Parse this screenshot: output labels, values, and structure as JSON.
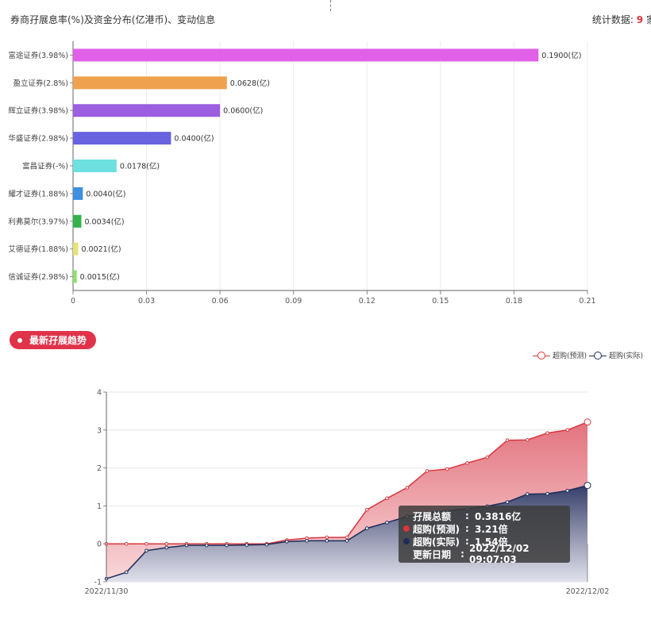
{
  "header": {
    "title": "券商孖展息率(%)及资金分布(亿港币)、变动信息",
    "stats_label": "统计数据:",
    "stats_count": "9",
    "stats_unit": "家"
  },
  "colors": {
    "series_forecast": "#d9363e",
    "series_actual": "#1c2b5a",
    "pill_bg": "#e0334a"
  },
  "chart_data": [
    {
      "type": "bar",
      "orientation": "horizontal",
      "categories": [
        "富途证券(3.98%)",
        "盈立证券(2.8%)",
        "辉立证券(3.98%)",
        "华盛证券(2.98%)",
        "富昌证券(-%)",
        "耀才证券(1.88%)",
        "利弗莫尔(3.97%)",
        "艾德证券(1.88%)",
        "信诚证券(2.98%)"
      ],
      "values": [
        0.19,
        0.0628,
        0.06,
        0.04,
        0.0178,
        0.004,
        0.0034,
        0.0021,
        0.0015
      ],
      "value_labels": [
        "0.1900(亿)",
        "0.0628(亿)",
        "0.0600(亿)",
        "0.0400(亿)",
        "0.0178(亿)",
        "0.0040(亿)",
        "0.0034(亿)",
        "0.0021(亿)",
        "0.0015(亿)"
      ],
      "bar_colors": [
        "#e060e8",
        "#efa24e",
        "#9b5fe0",
        "#6a63e0",
        "#6ee0e0",
        "#3e8fe0",
        "#33b34a",
        "#e6e27a",
        "#8ee06a"
      ],
      "xlim": [
        0,
        0.21
      ],
      "xticks": [
        "0",
        "0.03",
        "0.06",
        "0.09",
        "0.12",
        "0.15",
        "0.18",
        "0.21"
      ],
      "grid": true
    },
    {
      "type": "area",
      "title": "最新孖展趋势",
      "series": [
        {
          "name": "超购(预测)",
          "values": [
            0,
            0,
            0,
            0,
            0,
            0,
            0,
            0,
            0,
            0.1,
            0.15,
            0.17,
            0.17,
            0.9,
            1.2,
            1.48,
            1.92,
            1.97,
            2.13,
            2.28,
            2.73,
            2.74,
            2.92,
            3.0,
            3.21
          ]
        },
        {
          "name": "超购(实际)",
          "values": [
            -0.92,
            -0.75,
            -0.18,
            -0.1,
            -0.04,
            -0.04,
            -0.04,
            -0.03,
            -0.02,
            0.06,
            0.08,
            0.08,
            0.08,
            0.41,
            0.56,
            0.72,
            0.82,
            0.87,
            0.93,
            0.99,
            1.1,
            1.31,
            1.32,
            1.4,
            1.54
          ]
        }
      ],
      "ylim": [
        -1,
        4
      ],
      "yticks": [
        "-1",
        "0",
        "1",
        "2",
        "3",
        "4"
      ],
      "x_start_label": "2022/11/30",
      "x_end_label": "2022/12/02",
      "legend": "top-right",
      "grid": true
    }
  ],
  "trend": {
    "pill_label": "最新孖展趋势",
    "legend_forecast": "超购(预测)",
    "legend_actual": "超购(实际)"
  },
  "tooltip": {
    "total_label": "孖展总额",
    "total_value": "0.3816亿",
    "forecast_label": "超购(预测)",
    "forecast_value": "3.21倍",
    "actual_label": "超购(实际)",
    "actual_value": "1.54倍",
    "date_label": "更新日期",
    "date_value": "2022/12/02 09:07:03",
    "colon": ":"
  }
}
